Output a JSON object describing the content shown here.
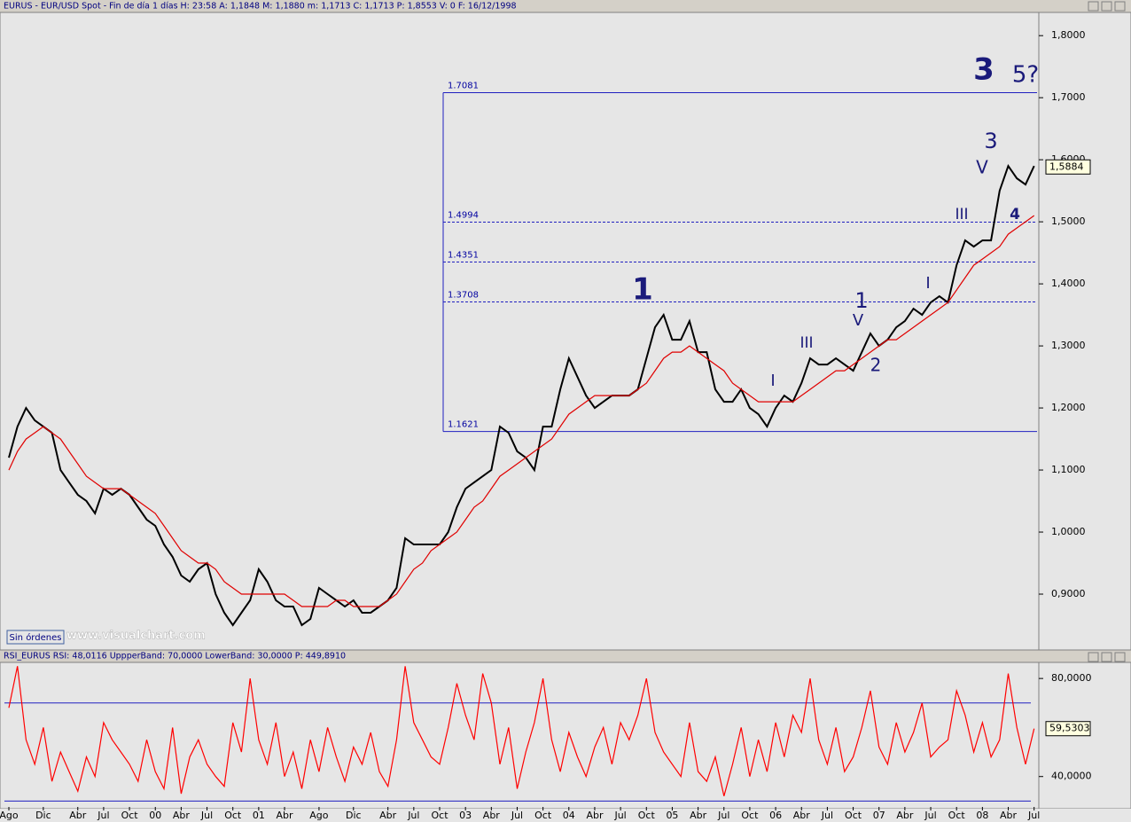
{
  "chart_data": [
    {
      "type": "line",
      "title": "EURUS - EUR/USD Spot - Fin de día 1 días  H: 23:58  A: 1,1848  M: 1,1880  m: 1,1713  C: 1,1713  P: 1,8553  V: 0  F: 16/12/1998",
      "categories": [
        "Ago",
        null,
        null,
        null,
        "Dic",
        null,
        null,
        null,
        "Abr",
        null,
        null,
        "Jul",
        null,
        null,
        "Oct",
        null,
        null,
        "00",
        null,
        null,
        "Abr",
        null,
        null,
        "Jul",
        null,
        null,
        "Oct",
        null,
        null,
        "01",
        null,
        null,
        "Abr",
        null,
        null,
        null,
        "Ago",
        null,
        null,
        null,
        "Dic",
        null,
        null,
        null,
        "Abr",
        null,
        null,
        "Jul",
        null,
        null,
        "Oct",
        null,
        null,
        "03",
        null,
        null,
        "Abr",
        null,
        null,
        "Jul",
        null,
        null,
        "Oct",
        null,
        null,
        "04",
        null,
        null,
        "Abr",
        null,
        null,
        "Jul",
        null,
        null,
        "Oct",
        null,
        null,
        "05",
        null,
        null,
        "Abr",
        null,
        null,
        "Jul",
        null,
        null,
        "Oct",
        null,
        null,
        "06",
        null,
        null,
        "Abr",
        null,
        null,
        "Jul",
        null,
        null,
        "Oct",
        null,
        null,
        "07",
        null,
        null,
        "Abr",
        null,
        null,
        "Jul",
        null,
        null,
        "Oct",
        null,
        null,
        "08",
        null,
        null,
        "Abr",
        null,
        null,
        "Jul"
      ],
      "series": [
        {
          "color": "#000000",
          "values": [
            1.12,
            1.17,
            1.2,
            1.18,
            1.17,
            1.16,
            1.1,
            1.08,
            1.06,
            1.05,
            1.03,
            1.07,
            1.06,
            1.07,
            1.06,
            1.04,
            1.02,
            1.01,
            0.98,
            0.96,
            0.93,
            0.92,
            0.94,
            0.95,
            0.9,
            0.87,
            0.85,
            0.87,
            0.89,
            0.94,
            0.92,
            0.89,
            0.88,
            0.88,
            0.85,
            0.86,
            0.91,
            0.9,
            0.89,
            0.88,
            0.89,
            0.87,
            0.87,
            0.88,
            0.89,
            0.91,
            0.99,
            0.98,
            0.98,
            0.98,
            0.98,
            1.0,
            1.04,
            1.07,
            1.08,
            1.09,
            1.1,
            1.17,
            1.16,
            1.13,
            1.12,
            1.1,
            1.17,
            1.17,
            1.23,
            1.28,
            1.25,
            1.22,
            1.2,
            1.21,
            1.22,
            1.22,
            1.22,
            1.23,
            1.28,
            1.33,
            1.35,
            1.31,
            1.31,
            1.34,
            1.29,
            1.29,
            1.23,
            1.21,
            1.21,
            1.23,
            1.2,
            1.19,
            1.17,
            1.2,
            1.22,
            1.21,
            1.24,
            1.28,
            1.27,
            1.27,
            1.28,
            1.27,
            1.26,
            1.29,
            1.32,
            1.3,
            1.31,
            1.33,
            1.34,
            1.36,
            1.35,
            1.37,
            1.38,
            1.37,
            1.43,
            1.47,
            1.46,
            1.47,
            1.47,
            1.55,
            1.59,
            1.57,
            1.56,
            1.59
          ]
        },
        {
          "color": "#e00000",
          "values": [
            1.1,
            1.13,
            1.15,
            1.16,
            1.17,
            1.16,
            1.15,
            1.13,
            1.11,
            1.09,
            1.08,
            1.07,
            1.07,
            1.07,
            1.06,
            1.05,
            1.04,
            1.03,
            1.01,
            0.99,
            0.97,
            0.96,
            0.95,
            0.95,
            0.94,
            0.92,
            0.91,
            0.9,
            0.9,
            0.9,
            0.9,
            0.9,
            0.9,
            0.89,
            0.88,
            0.88,
            0.88,
            0.88,
            0.89,
            0.89,
            0.88,
            0.88,
            0.88,
            0.88,
            0.89,
            0.9,
            0.92,
            0.94,
            0.95,
            0.97,
            0.98,
            0.99,
            1.0,
            1.02,
            1.04,
            1.05,
            1.07,
            1.09,
            1.1,
            1.11,
            1.12,
            1.13,
            1.14,
            1.15,
            1.17,
            1.19,
            1.2,
            1.21,
            1.22,
            1.22,
            1.22,
            1.22,
            1.22,
            1.23,
            1.24,
            1.26,
            1.28,
            1.29,
            1.29,
            1.3,
            1.29,
            1.28,
            1.27,
            1.26,
            1.24,
            1.23,
            1.22,
            1.21,
            1.21,
            1.21,
            1.21,
            1.21,
            1.22,
            1.23,
            1.24,
            1.25,
            1.26,
            1.26,
            1.27,
            1.28,
            1.29,
            1.3,
            1.31,
            1.31,
            1.32,
            1.33,
            1.34,
            1.35,
            1.36,
            1.37,
            1.39,
            1.41,
            1.43,
            1.44,
            1.45,
            1.46,
            1.48,
            1.49,
            1.5,
            1.51
          ]
        }
      ],
      "ylim": [
        0.81,
        1.836
      ],
      "yticks": [
        {
          "value": 0.9,
          "label": "0,9000"
        },
        {
          "value": 1.0,
          "label": "1,0000"
        },
        {
          "value": 1.1,
          "label": "1,1000"
        },
        {
          "value": 1.2,
          "label": "1,2000"
        },
        {
          "value": 1.3,
          "label": "1,3000"
        },
        {
          "value": 1.4,
          "label": "1,4000"
        },
        {
          "value": 1.5,
          "label": "1,5000"
        },
        {
          "value": 1.6,
          "label": "1,6000"
        },
        {
          "value": 1.7,
          "label": "1,7000"
        },
        {
          "value": 1.8,
          "label": "1,8000"
        }
      ],
      "levels": [
        1.7081,
        1.4994,
        1.4351,
        1.3708,
        1.1621
      ],
      "annotations": [
        "3",
        "5?",
        "3",
        "V",
        "III",
        "4",
        "1",
        "1",
        "V",
        "III",
        "2",
        "I",
        "I"
      ],
      "last_value": {
        "value": 1.5884,
        "label": "1,5884"
      }
    },
    {
      "type": "line",
      "title": "RSI_EURUS  RSI: 48,0116  UppperBand: 70,0000  LowerBand: 30,0000  P: 449,8910",
      "series": [
        {
          "color": "#ff0000",
          "values": [
            68,
            85,
            55,
            45,
            60,
            38,
            50,
            42,
            34,
            48,
            40,
            62,
            55,
            50,
            45,
            38,
            55,
            42,
            35,
            60,
            33,
            48,
            55,
            45,
            40,
            36,
            62,
            50,
            80,
            55,
            45,
            62,
            40,
            50,
            35,
            55,
            42,
            60,
            48,
            38,
            52,
            45,
            58,
            42,
            36,
            55,
            85,
            62,
            55,
            48,
            45,
            60,
            78,
            65,
            55,
            82,
            70,
            45,
            60,
            35,
            50,
            62,
            80,
            55,
            42,
            58,
            48,
            40,
            52,
            60,
            45,
            62,
            55,
            65,
            80,
            58,
            50,
            45,
            40,
            62,
            42,
            38,
            48,
            32,
            45,
            60,
            40,
            55,
            42,
            62,
            48,
            65,
            58,
            80,
            55,
            45,
            60,
            42,
            48,
            60,
            75,
            52,
            45,
            62,
            50,
            58,
            70,
            48,
            52,
            55,
            75,
            65,
            50,
            62,
            48,
            55,
            82,
            60,
            45,
            59.53
          ]
        }
      ],
      "ylim": [
        27.6,
        86.2
      ],
      "yticks": [
        {
          "value": 40,
          "label": "40,0000"
        },
        {
          "value": 80,
          "label": "80,0000"
        }
      ],
      "bands": [
        70,
        30
      ],
      "last_value": {
        "value": 59.5303,
        "label": "59,5303"
      }
    }
  ],
  "ui": {
    "button": "Sin órdenes",
    "watermark": "www.visualchart.com"
  }
}
